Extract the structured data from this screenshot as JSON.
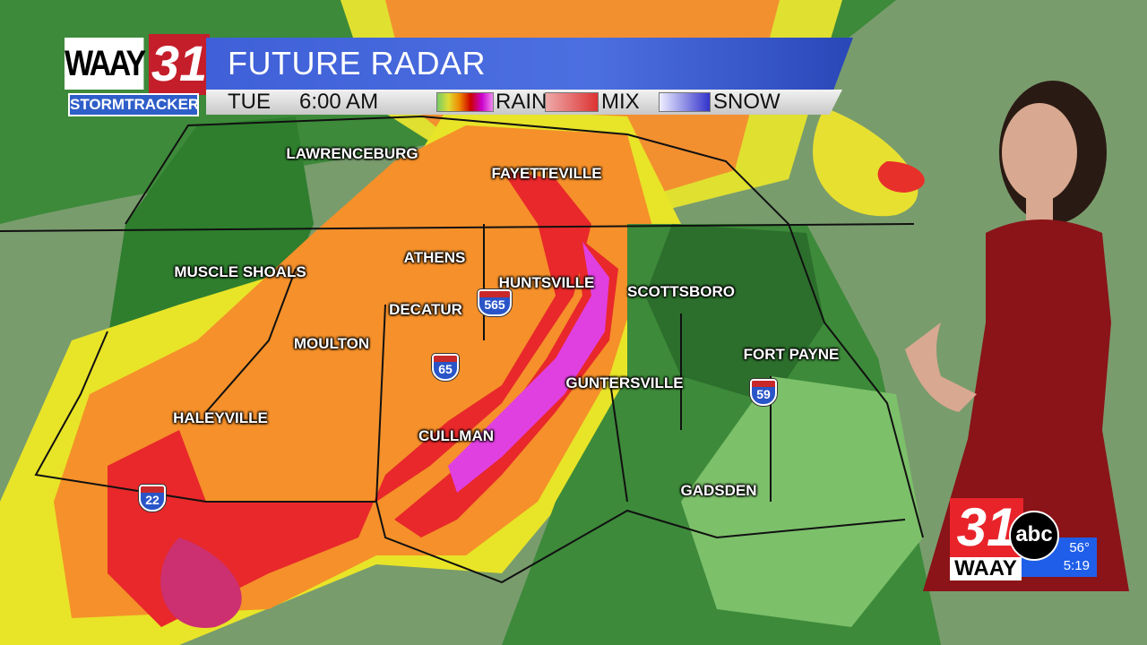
{
  "header": {
    "title": "FUTURE RADAR",
    "day": "TUE",
    "time": "6:00 AM",
    "legend": [
      {
        "label": "RAIN"
      },
      {
        "label": "MIX"
      },
      {
        "label": "SNOW"
      }
    ]
  },
  "logo": {
    "call": "WAAY",
    "channel": "31",
    "brand": "STORMTRACKER"
  },
  "bug": {
    "channel": "31",
    "call": "WAAY",
    "network": "abc",
    "temperature": "56°",
    "clock": "5:19"
  },
  "cities": [
    "LAWRENCEBURG",
    "FAYETTEVILLE",
    "MUSCLE SHOALS",
    "ATHENS",
    "HUNTSVILLE",
    "DECATUR",
    "SCOTTSBORO",
    "MOULTON",
    "GUNTERSVILLE",
    "FORT PAYNE",
    "HALEYVILLE",
    "CULLMAN",
    "GADSDEN"
  ],
  "interstates": [
    "565",
    "65",
    "59",
    "22"
  ],
  "colors": {
    "rain_light": "#5aa84a",
    "rain_heavy": "#e8252a",
    "mix": "#e04040",
    "snow": "#e040e0",
    "title_bar": "#4466dd"
  }
}
